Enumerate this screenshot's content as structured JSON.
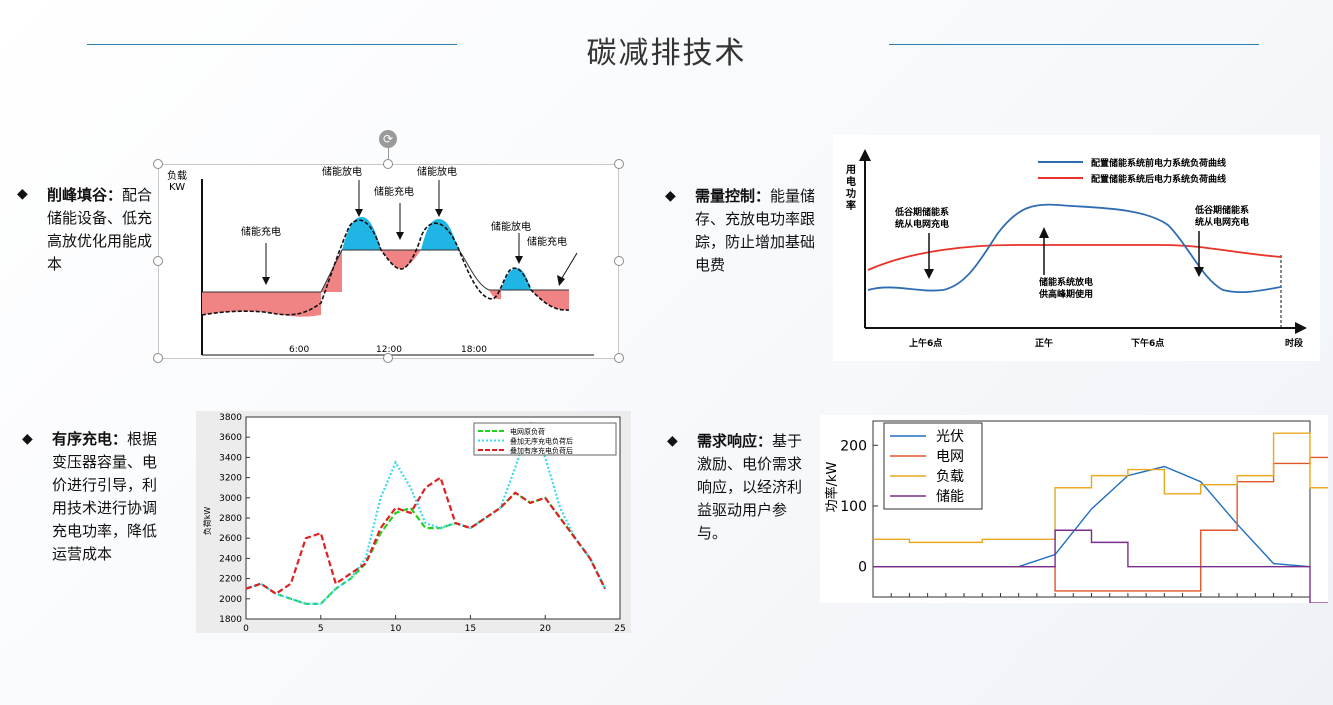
{
  "page": {
    "title": "碳减排技术"
  },
  "sections": {
    "peak": {
      "heading": "削峰填谷：",
      "body": "配合储能设备、低充高放优化用能成本"
    },
    "demand": {
      "heading": "需量控制：",
      "body": "能量储存、充放电功率跟踪，防止增加基础电费"
    },
    "ordered": {
      "heading": "有序充电：",
      "body": "根据变压器容量、电价进行引导，利用技术进行协调充电功率，降低运营成本"
    },
    "response": {
      "heading": "需求响应：",
      "body": "基于激励、电价需求响应，以经济利益驱动用户参与。"
    }
  },
  "chart1": {
    "ylabel_1": "负载",
    "ylabel_2": "KW",
    "ticks": [
      "6:00",
      "12:00",
      "18:00"
    ],
    "labels": [
      "储能充电",
      "储能放电",
      "储能充电",
      "储能放电",
      "储能放电",
      "储能充电"
    ],
    "colors": {
      "discharge": "#1fb6e6",
      "charge": "#f08484"
    }
  },
  "chart2": {
    "ylabel": [
      "用",
      "电",
      "功",
      "率"
    ],
    "xlabel": "时段",
    "ticks": [
      "上午6点",
      "正午",
      "下午6点"
    ],
    "legend": [
      "配置储能系统前电力系统负荷曲线",
      "配置储能系统后电力系统负荷曲线"
    ],
    "annotations": [
      "低谷期储能系",
      "统从电网充电",
      "储能系统放电",
      "供高峰期使用",
      "低谷期储能系",
      "统从电网充电"
    ],
    "colors": {
      "before": "#2f6db3",
      "after": "#e8322a"
    }
  },
  "chart_data": [
    {
      "type": "line",
      "x": [
        0,
        1,
        2,
        3,
        4,
        5,
        6,
        7,
        8,
        9,
        10,
        11,
        12,
        13,
        14,
        15,
        16,
        17,
        18,
        19,
        20,
        21,
        22,
        23,
        24
      ],
      "ylabel": "负荷kW",
      "ylim": [
        1800,
        3800
      ],
      "xlim": [
        0,
        25
      ],
      "yticks": [
        "1800",
        "2000",
        "2200",
        "2400",
        "2600",
        "2800",
        "3000",
        "3200",
        "3400",
        "3600",
        "3800"
      ],
      "xticks": [
        "0",
        "5",
        "10",
        "15",
        "20",
        "25"
      ],
      "series": [
        {
          "name": "电网原负荷",
          "color": "#22d11e",
          "values": [
            2100,
            2150,
            2050,
            2000,
            1950,
            1950,
            2100,
            2200,
            2350,
            2650,
            2850,
            2900,
            2700,
            2700,
            2750,
            2700,
            2800,
            2900,
            3050,
            2950,
            3000,
            2800,
            2600,
            2400,
            2100
          ]
        },
        {
          "name": "叠加无序充电负荷后",
          "color": "#38d8f0",
          "values": [
            2100,
            2150,
            2050,
            2000,
            1950,
            1950,
            2100,
            2200,
            2400,
            3000,
            3350,
            3100,
            2750,
            2700,
            2750,
            2700,
            2800,
            2900,
            3300,
            3750,
            3400,
            2900,
            2600,
            2400,
            2100
          ]
        },
        {
          "name": "叠加有序充电负荷后",
          "color": "#e02020",
          "values": [
            2100,
            2150,
            2050,
            2150,
            2600,
            2650,
            2150,
            2250,
            2350,
            2700,
            2900,
            2850,
            3100,
            3200,
            2750,
            2700,
            2800,
            2900,
            3050,
            2950,
            3000,
            2800,
            2600,
            2400,
            2100
          ]
        }
      ]
    },
    {
      "type": "line",
      "x": [
        0,
        2,
        4,
        6,
        8,
        10,
        12,
        14,
        16,
        18,
        20,
        22,
        24
      ],
      "ylabel": "功率/kW",
      "ylim": [
        -50,
        240
      ],
      "xlim": [
        0,
        24
      ],
      "yticks": [
        "0",
        "100",
        "200"
      ],
      "series": [
        {
          "name": "光伏",
          "color": "#1f6fbf",
          "values": [
            0,
            0,
            0,
            0,
            0,
            20,
            95,
            150,
            165,
            140,
            70,
            5,
            0
          ]
        },
        {
          "name": "电网",
          "color": "#e2562a",
          "values": [
            0,
            0,
            0,
            0,
            0,
            -40,
            -40,
            -40,
            -40,
            60,
            140,
            170,
            180
          ]
        },
        {
          "name": "负载",
          "color": "#e9a820",
          "values": [
            45,
            40,
            40,
            45,
            45,
            130,
            150,
            160,
            120,
            135,
            150,
            220,
            130
          ]
        },
        {
          "name": "储能",
          "color": "#7b2d8e",
          "values": [
            0,
            0,
            0,
            0,
            0,
            60,
            40,
            0,
            0,
            0,
            0,
            0,
            -60
          ]
        }
      ]
    }
  ]
}
